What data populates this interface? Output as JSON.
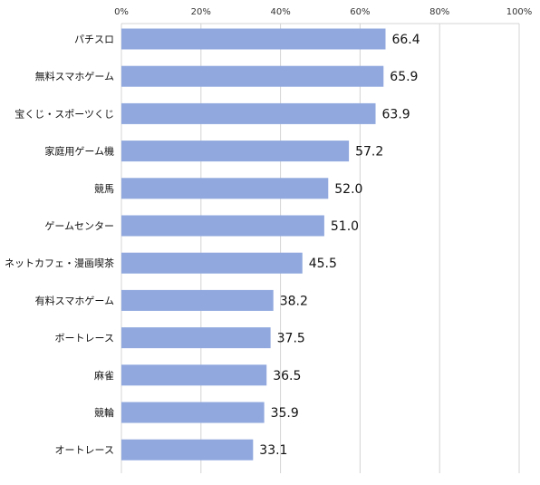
{
  "chart_data": {
    "type": "bar",
    "orientation": "horizontal",
    "title": "",
    "xlabel": "",
    "ylabel": "",
    "xlim": [
      0,
      100
    ],
    "x_ticks": [
      0,
      20,
      40,
      60,
      80,
      100
    ],
    "tick_suffix": "%",
    "x_axis_position": "top",
    "grid": true,
    "legend": "none",
    "bar_color": "#90a8de",
    "categories": [
      "パチスロ",
      "無料スマホゲーム",
      "宝くじ・スポーツくじ",
      "家庭用ゲーム機",
      "競馬",
      "ゲームセンター",
      "ネットカフェ・漫画喫茶",
      "有料スマホゲーム",
      "ボートレース",
      "麻雀",
      "競輪",
      "オートレース"
    ],
    "values": [
      66.4,
      65.9,
      63.9,
      57.2,
      52.0,
      51.0,
      45.5,
      38.2,
      37.5,
      36.5,
      35.9,
      33.1
    ],
    "value_labels": [
      "66.4",
      "65.9",
      "63.9",
      "57.2",
      "52.0",
      "51.0",
      "45.5",
      "38.2",
      "37.5",
      "36.5",
      "35.9",
      "33.1"
    ]
  }
}
